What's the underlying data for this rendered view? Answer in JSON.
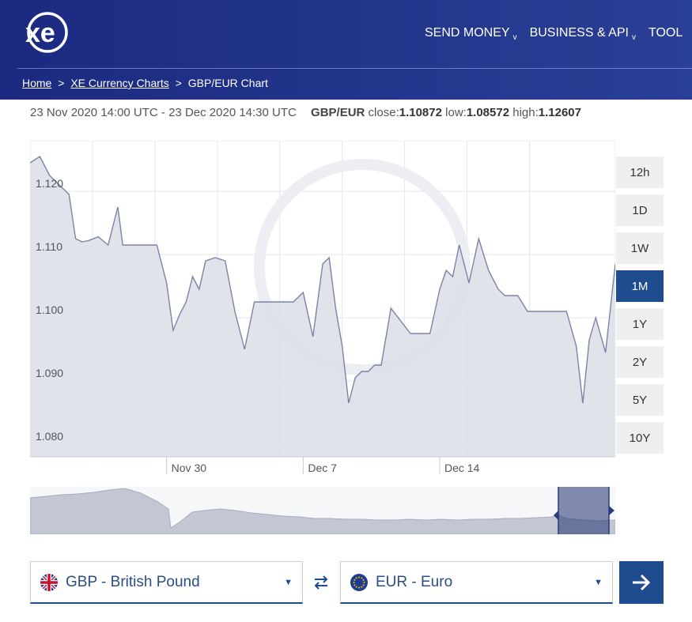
{
  "header": {
    "logo_text": "xe",
    "nav": [
      {
        "label": "SEND MONEY"
      },
      {
        "label": "BUSINESS & API"
      },
      {
        "label": "TOOL"
      }
    ]
  },
  "breadcrumb": {
    "home": "Home",
    "sep1": ">",
    "charts": "XE Currency Charts",
    "sep2": ">",
    "current": "GBP/EUR Chart"
  },
  "info": {
    "range": "23 Nov 2020 14:00 UTC - 23 Dec 2020 14:30 UTC",
    "pair": "GBP/EUR",
    "close_label": "close:",
    "close": "1.10872",
    "low_label": "low:",
    "low": "1.08572",
    "high_label": "high:",
    "high": "1.12607"
  },
  "range_buttons": [
    {
      "label": "12h",
      "active": false
    },
    {
      "label": "1D",
      "active": false
    },
    {
      "label": "1W",
      "active": false
    },
    {
      "label": "1M",
      "active": true
    },
    {
      "label": "1Y",
      "active": false
    },
    {
      "label": "2Y",
      "active": false
    },
    {
      "label": "5Y",
      "active": false
    },
    {
      "label": "10Y",
      "active": false
    }
  ],
  "chart_data": {
    "type": "area",
    "title": "",
    "xlabel": "",
    "ylabel": "",
    "ylim": [
      1.078,
      1.128
    ],
    "xlim": [
      "2020-11-23",
      "2020-12-23"
    ],
    "yticks": [
      1.08,
      1.09,
      1.1,
      1.11,
      1.12
    ],
    "ytick_labels": [
      "1.080",
      "1.090",
      "1.100",
      "1.110",
      "1.120"
    ],
    "xticks": [
      "2020-11-30",
      "2020-12-07",
      "2020-12-14"
    ],
    "xtick_labels": [
      "Nov 30",
      "Dec 7",
      "Dec 14"
    ],
    "grid": true,
    "colors": {
      "line": "#7c83a6",
      "fill": "#dcdee8",
      "grid": "#e4e6ec"
    },
    "series": [
      {
        "x": [
          "2020-11-23",
          "2020-11-23",
          "2020-11-24",
          "2020-11-24",
          "2020-11-24",
          "2020-11-25",
          "2020-11-25",
          "2020-11-25",
          "2020-11-26",
          "2020-11-26",
          "2020-11-27",
          "2020-11-27",
          "2020-11-27",
          "2020-11-27",
          "2020-11-28",
          "2020-11-29",
          "2020-11-30",
          "2020-11-30",
          "2020-11-30",
          "2020-12-01",
          "2020-12-01",
          "2020-12-01",
          "2020-12-02",
          "2020-12-02",
          "2020-12-03",
          "2020-12-03",
          "2020-12-04",
          "2020-12-04",
          "2020-12-05",
          "2020-12-06",
          "2020-12-07",
          "2020-12-07",
          "2020-12-08",
          "2020-12-08",
          "2020-12-08",
          "2020-12-09",
          "2020-12-09",
          "2020-12-09",
          "2020-12-10",
          "2020-12-10",
          "2020-12-10",
          "2020-12-11",
          "2020-12-11",
          "2020-12-12",
          "2020-12-13",
          "2020-12-14",
          "2020-12-14",
          "2020-12-14",
          "2020-12-15",
          "2020-12-15",
          "2020-12-16",
          "2020-12-16",
          "2020-12-17",
          "2020-12-17",
          "2020-12-17",
          "2020-12-18",
          "2020-12-18",
          "2020-12-19",
          "2020-12-20",
          "2020-12-21",
          "2020-12-21",
          "2020-12-21",
          "2020-12-22",
          "2020-12-22",
          "2020-12-23"
        ],
        "y": [
          1.1245,
          1.1255,
          1.1225,
          1.1215,
          1.1205,
          1.1195,
          1.1125,
          1.112,
          1.1122,
          1.1128,
          1.1115,
          1.1145,
          1.1175,
          1.1115,
          1.1115,
          1.1115,
          1.1055,
          1.098,
          1.1005,
          1.1025,
          1.1065,
          1.1045,
          1.109,
          1.1095,
          1.109,
          1.101,
          1.095,
          1.1025,
          1.1025,
          1.1025,
          1.104,
          1.097,
          1.1085,
          1.1095,
          1.1015,
          1.0955,
          1.0865,
          1.0905,
          1.0915,
          1.0915,
          1.0925,
          1.0925,
          1.1015,
          1.0975,
          1.0975,
          1.1045,
          1.1075,
          1.1065,
          1.1115,
          1.1055,
          1.1125,
          1.1075,
          1.1045,
          1.1035,
          1.1035,
          1.1035,
          1.101,
          1.101,
          1.101,
          1.0955,
          1.0865,
          1.0965,
          1.1,
          1.0945,
          1.1085
        ]
      }
    ]
  },
  "selects": {
    "from": {
      "label": "GBP - British Pound",
      "flag": "uk-flag-icon"
    },
    "to": {
      "label": "EUR - Euro",
      "flag": "eu-flag-icon"
    }
  },
  "icons": {
    "swap": "swap-arrows-icon",
    "go": "arrow-right-icon"
  }
}
